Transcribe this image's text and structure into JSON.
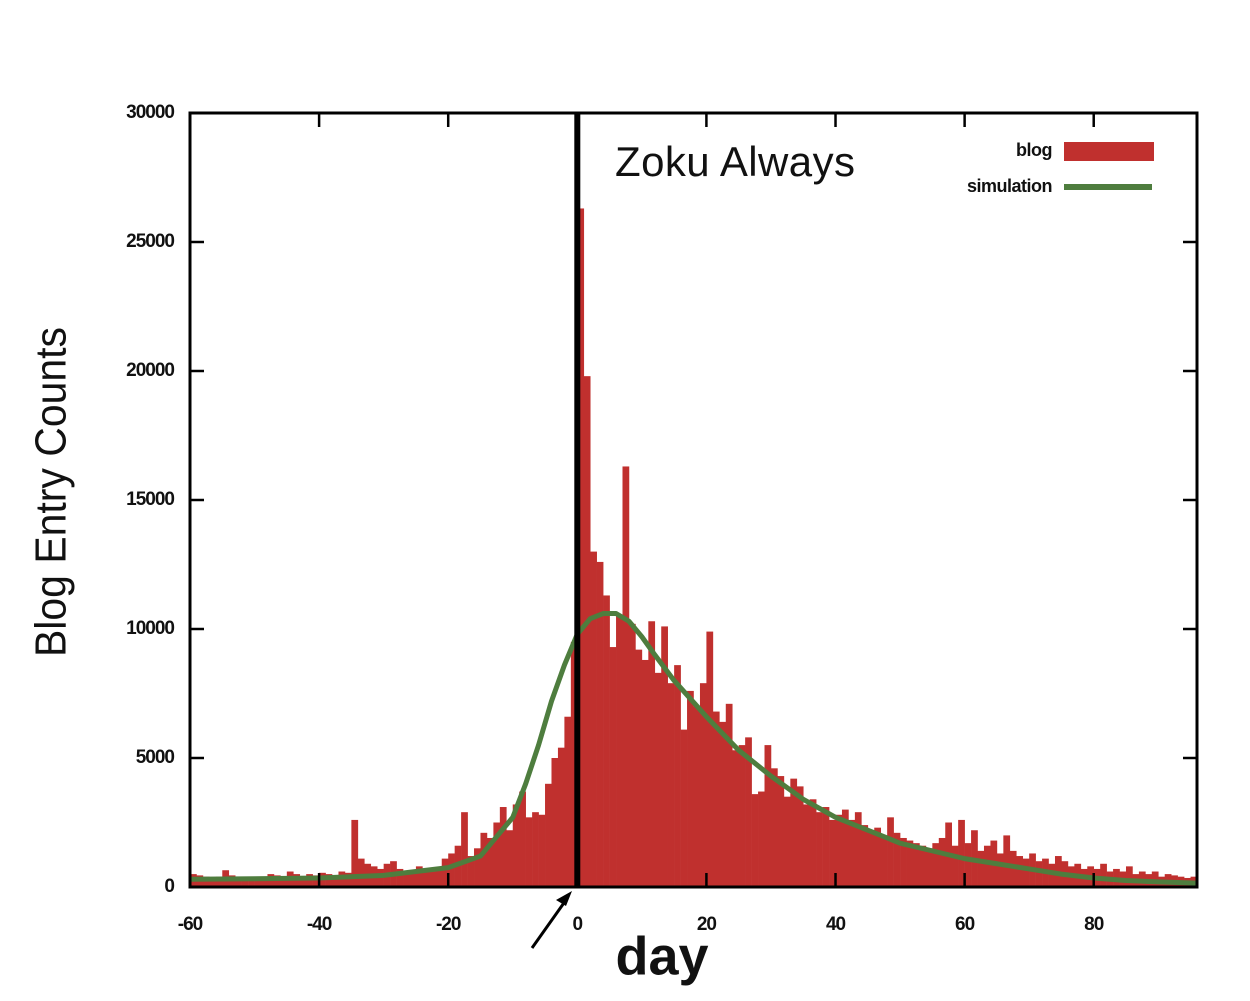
{
  "chart_data": {
    "type": "histogram",
    "annotation": "Zoku Always",
    "xlabel": "day",
    "ylabel": "Blog Entry Counts",
    "bins": [
      -60,
      -59,
      -58,
      -57,
      -56,
      -55,
      -54,
      -53,
      -52,
      -51,
      -50,
      -49,
      -48,
      -47,
      -46,
      -45,
      -44,
      -43,
      -42,
      -41,
      -40,
      -39,
      -38,
      -37,
      -36,
      -35,
      -34,
      -33,
      -32,
      -31,
      -30,
      -29,
      -28,
      -27,
      -26,
      -25,
      -24,
      -23,
      -22,
      -21,
      -20,
      -19,
      -18,
      -17,
      -16,
      -15,
      -14,
      -13,
      -12,
      -11,
      -10,
      -9,
      -8,
      -7,
      -6,
      -5,
      -4,
      -3,
      -2,
      -1,
      0,
      1,
      2,
      3,
      4,
      5,
      6,
      7,
      8,
      9,
      10,
      11,
      12,
      13,
      14,
      15,
      16,
      17,
      18,
      19,
      20,
      21,
      22,
      23,
      24,
      25,
      26,
      27,
      28,
      29,
      30,
      31,
      32,
      33,
      34,
      35,
      36,
      37,
      38,
      39,
      40,
      41,
      42,
      43,
      44,
      45,
      46,
      47,
      48,
      49,
      50,
      51,
      52,
      53,
      54,
      55,
      56,
      57,
      58,
      59,
      60,
      61,
      62,
      63,
      64,
      65,
      66,
      67,
      68,
      69,
      70,
      71,
      72,
      73,
      74,
      75,
      76,
      77,
      78,
      79,
      80,
      81,
      82,
      83,
      84,
      85,
      86,
      87,
      88,
      89,
      90,
      91,
      92,
      93,
      94,
      95,
      96
    ],
    "series": [
      {
        "name": "blog",
        "color": "#c0302e",
        "values": [
          500,
          450,
          400,
          350,
          400,
          650,
          450,
          400,
          350,
          350,
          400,
          350,
          500,
          450,
          400,
          600,
          500,
          400,
          500,
          450,
          550,
          500,
          450,
          600,
          550,
          2600,
          1100,
          900,
          800,
          700,
          900,
          1000,
          700,
          600,
          650,
          800,
          700,
          600,
          700,
          1100,
          1300,
          1600,
          2900,
          1200,
          1500,
          2100,
          1900,
          2500,
          3100,
          2200,
          3200,
          3700,
          2700,
          2900,
          2800,
          4000,
          5000,
          5400,
          6600,
          9500,
          26300,
          19800,
          13000,
          12600,
          11300,
          9300,
          10500,
          16300,
          10200,
          9200,
          8800,
          10300,
          8300,
          10100,
          7900,
          8600,
          6100,
          7600,
          7000,
          7900,
          9900,
          6800,
          6400,
          7100,
          5300,
          5500,
          5800,
          3600,
          3700,
          5500,
          4600,
          4300,
          3500,
          4200,
          3900,
          3200,
          3400,
          2900,
          3100,
          2600,
          2800,
          3000,
          2600,
          2900,
          2400,
          2200,
          2300,
          1900,
          2700,
          2100,
          1900,
          1800,
          1700,
          1600,
          1500,
          1700,
          1900,
          2500,
          1600,
          2600,
          1700,
          2200,
          1400,
          1600,
          1800,
          1300,
          2000,
          1400,
          1200,
          1100,
          1300,
          1000,
          1100,
          900,
          1200,
          1000,
          800,
          900,
          700,
          800,
          700,
          900,
          600,
          700,
          600,
          800,
          500,
          600,
          500,
          600,
          400,
          500,
          450,
          400,
          350,
          400
        ]
      },
      {
        "name": "simulation",
        "color": "#4e7d3e",
        "type": "line",
        "x": [
          -60,
          -50,
          -40,
          -30,
          -20,
          -15,
          -10,
          -8,
          -6,
          -4,
          -2,
          0,
          2,
          4,
          6,
          8,
          10,
          12,
          15,
          20,
          25,
          30,
          35,
          40,
          45,
          50,
          55,
          60,
          65,
          70,
          75,
          80,
          85,
          90,
          96
        ],
        "values": [
          300,
          320,
          350,
          450,
          750,
          1200,
          2700,
          4000,
          5500,
          7200,
          8600,
          9800,
          10400,
          10600,
          10600,
          10300,
          9700,
          9000,
          8000,
          6600,
          5300,
          4300,
          3400,
          2700,
          2200,
          1700,
          1400,
          1100,
          900,
          700,
          500,
          350,
          250,
          200,
          150
        ]
      }
    ],
    "vline": 0,
    "xlim": [
      -60,
      96
    ],
    "ylim": [
      0,
      30000
    ],
    "xticks": [
      -60,
      -40,
      -20,
      0,
      20,
      40,
      60,
      80
    ],
    "yticks": [
      0,
      5000,
      10000,
      15000,
      20000,
      25000,
      30000
    ],
    "legend": "upper right"
  }
}
